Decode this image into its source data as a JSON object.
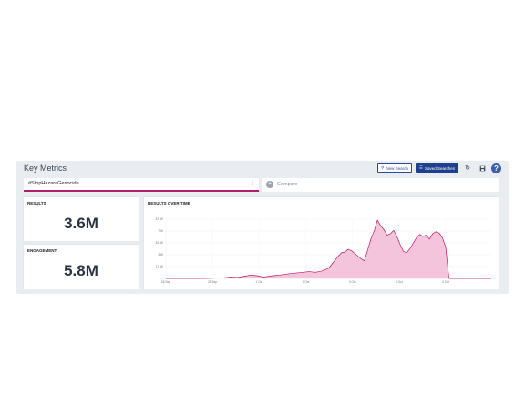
{
  "header": {
    "title": "Key Metrics"
  },
  "toolbar": {
    "new_search_label": "New Search",
    "saved_searches_label": "Saved Searches",
    "help_label": "?"
  },
  "search": {
    "query": "#StopHazaraGenocide",
    "compare_label": "Compare"
  },
  "metrics": {
    "results": {
      "label": "RESULTS",
      "value": "3.6M"
    },
    "engagement": {
      "label": "ENGAGEMENT",
      "value": "5.8M"
    }
  },
  "chart_data": {
    "type": "area",
    "title": "RESULTS OVER TIME",
    "xlabel": "",
    "ylabel": "",
    "y_ticks": [
      "17.5K",
      "35K",
      "52.5K",
      "70K",
      "87.5K"
    ],
    "x_ticks": [
      "26 Sep",
      "28 Sep",
      "1 Oct",
      "2 Oct",
      "3 Oct",
      "4 Oct",
      "5 Oct"
    ],
    "ylim": [
      0,
      87.5
    ],
    "xlim": [
      0,
      100
    ],
    "grid": true,
    "color": "#c2185b",
    "fill": "#f4c3dc",
    "series": [
      {
        "x": [
          0,
          4,
          8,
          12,
          15,
          18,
          20,
          22,
          24,
          26,
          28,
          30,
          33,
          35,
          38,
          40,
          42,
          44,
          46,
          48,
          50,
          51,
          52,
          53,
          54,
          55,
          56,
          57,
          58,
          59,
          60,
          61,
          62,
          63,
          64,
          65,
          66,
          67,
          68,
          69,
          70,
          71,
          72,
          73,
          74,
          75,
          76,
          77,
          78,
          79,
          80,
          81,
          82,
          83,
          84,
          85,
          86,
          87,
          88,
          89,
          90,
          92,
          95,
          100
        ],
        "y": [
          0,
          0,
          0,
          0,
          0.5,
          1,
          2,
          1.5,
          3,
          5,
          4,
          2,
          4,
          5,
          7,
          8,
          9,
          10,
          9,
          11,
          15,
          21,
          27,
          33,
          38,
          39,
          43,
          41,
          37,
          33,
          29,
          26,
          42,
          58,
          70,
          86,
          78,
          72,
          64,
          66,
          71,
          62,
          50,
          40,
          38,
          44,
          52,
          60,
          65,
          62,
          64,
          58,
          66,
          69,
          67,
          60,
          46,
          0,
          0,
          0,
          0,
          0,
          0,
          0
        ]
      }
    ]
  }
}
